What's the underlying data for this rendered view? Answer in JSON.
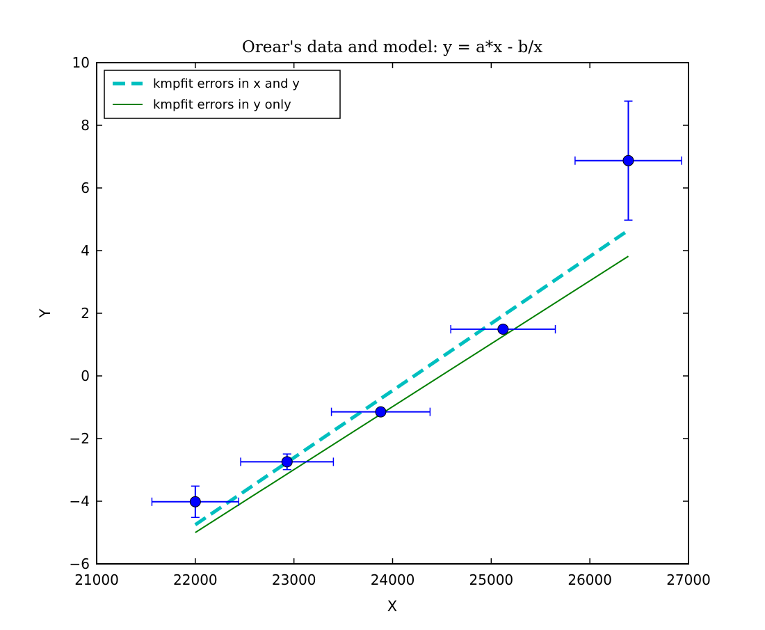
{
  "chart_data": {
    "type": "scatter",
    "title": "Orear's data and model: y = a*x - b/x",
    "xlabel": "X",
    "ylabel": "Y",
    "xlim": [
      21000,
      27000
    ],
    "ylim": [
      -6,
      10
    ],
    "xticks": [
      21000,
      22000,
      23000,
      24000,
      25000,
      26000,
      27000
    ],
    "yticks": [
      -6,
      -4,
      -2,
      0,
      2,
      4,
      6,
      8,
      10
    ],
    "xtick_labels": [
      "21000",
      "22000",
      "23000",
      "24000",
      "25000",
      "26000",
      "27000"
    ],
    "ytick_labels": [
      "−6",
      "−4",
      "−2",
      "0",
      "2",
      "4",
      "6",
      "8",
      "10"
    ],
    "grid": false,
    "legend_position": "top-left",
    "points": {
      "color": "#0000ff",
      "x": [
        22000,
        22930,
        23880,
        25120,
        26390
      ],
      "y": [
        -4.017,
        -2.742,
        -1.1478,
        1.491,
        6.873
      ],
      "xerr": [
        440,
        470,
        500,
        530,
        540
      ],
      "yerr": [
        0.5,
        0.25,
        0.0,
        0.0,
        1.9
      ]
    },
    "series": [
      {
        "name": "kmpfit errors in x and y",
        "color": "#00bfbf",
        "style": "dashed",
        "x": [
          22000,
          26390
        ],
        "y": [
          -4.75,
          4.65
        ]
      },
      {
        "name": "kmpfit errors in y only",
        "color": "#008000",
        "style": "solid",
        "x": [
          22000,
          26390
        ],
        "y": [
          -5.0,
          3.82
        ]
      }
    ]
  }
}
